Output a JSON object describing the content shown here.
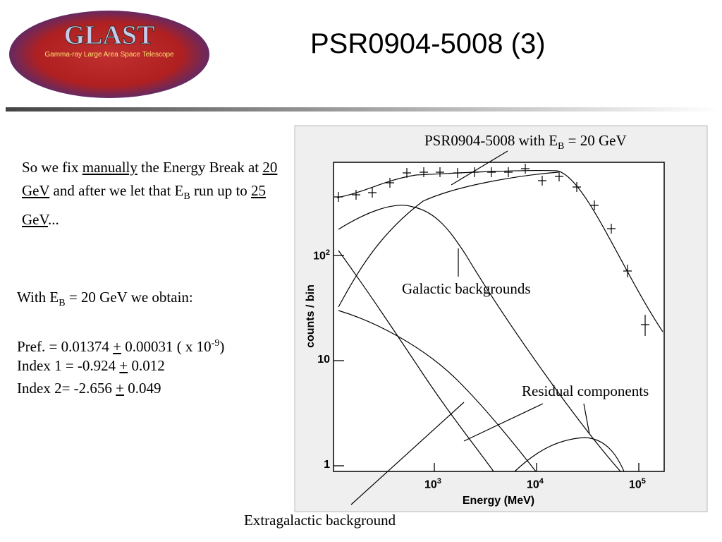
{
  "header": {
    "logo_title": "GLAST",
    "logo_subtitle": "Gamma-ray Large Area Space Telescope",
    "title": "PSR0904-5008 (3)"
  },
  "intro": [
    "So we fix ",
    "manually",
    " the Energy Break at ",
    "20 GeV",
    " and after we let that E",
    "B",
    " run up to ",
    "25 GeV",
    "..."
  ],
  "results": {
    "obtain": [
      "With E",
      "B",
      " = 20 GeV we obtain:"
    ],
    "pref": [
      "Pref. = 0.01374 ",
      "+",
      " 0.00031  ( x 10",
      "-9",
      ")"
    ],
    "index1": [
      "Index 1 = -0.924 ",
      "+",
      " 0.012"
    ],
    "index2": [
      "Index 2= -2.656 ",
      "+",
      " 0.049"
    ]
  },
  "plot": {
    "y_label": "counts / bin",
    "x_label": "Energy (MeV)",
    "yticks": [
      [
        "1"
      ],
      [
        "10"
      ],
      [
        "10",
        "2"
      ]
    ],
    "xticks": [
      [
        "10",
        "3"
      ],
      [
        "10",
        "4"
      ],
      [
        "10",
        "5"
      ]
    ]
  },
  "annotations": {
    "psr": [
      "PSR0904-5008 with E",
      "B",
      " = 20 GeV"
    ],
    "galactic": "Galactic backgrounds",
    "residual": "Residual components",
    "extragalactic": "Extragalactic background"
  }
}
